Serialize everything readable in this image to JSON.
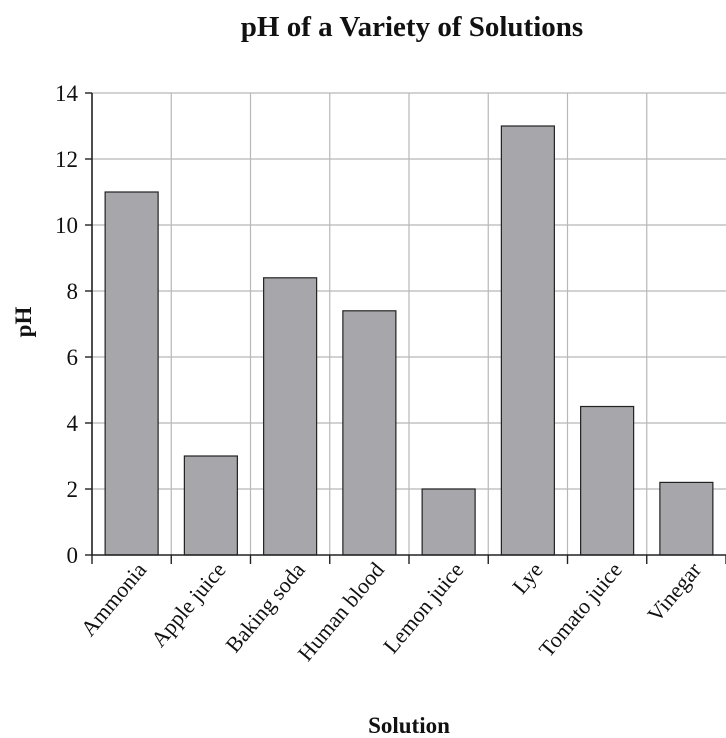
{
  "chart_data": {
    "type": "bar",
    "title": "pH of a Variety of Solutions",
    "xlabel": "Solution",
    "ylabel": "pH",
    "categories": [
      "Ammonia",
      "Apple juice",
      "Baking soda",
      "Human blood",
      "Lemon juice",
      "Lye",
      "Tomato juice",
      "Vinegar"
    ],
    "values": [
      11,
      3,
      8.4,
      7.4,
      2,
      13,
      4.5,
      2.2
    ],
    "ylim": [
      0,
      14
    ],
    "yticks": [
      0,
      2,
      4,
      6,
      8,
      10,
      12,
      14
    ],
    "grid": true,
    "colors": {
      "bar": "#a7a7ab",
      "bar_stroke": "#222222",
      "grid": "#b8b8b8",
      "axis": "#222222",
      "text": "#111111"
    }
  }
}
